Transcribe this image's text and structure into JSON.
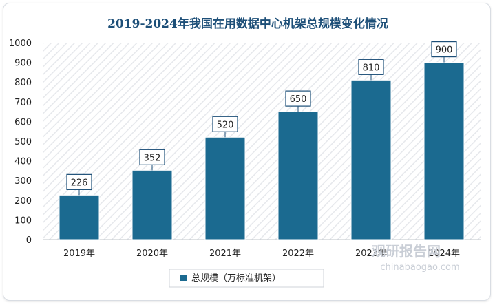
{
  "chart_data": {
    "type": "bar",
    "title": "2019-2024年我国在用数据中心机架总规模变化情况",
    "categories": [
      "2019年",
      "2020年",
      "2021年",
      "2022年",
      "2023年",
      "2024年"
    ],
    "series": [
      {
        "name": "总规模（万标准机架）",
        "values": [
          226,
          352,
          520,
          650,
          810,
          900
        ]
      }
    ],
    "xlabel": "",
    "ylabel": "",
    "ylim": [
      0,
      1000
    ],
    "yticks": [
      0,
      100,
      200,
      300,
      400,
      500,
      600,
      700,
      800,
      900,
      1000
    ],
    "grid": false,
    "legend_position": "bottom",
    "bar_color": "#1b6a90",
    "background_pattern": "diagonal-hatch"
  },
  "watermark": {
    "name": "观研报告网",
    "url": "chinabaogao.com"
  }
}
